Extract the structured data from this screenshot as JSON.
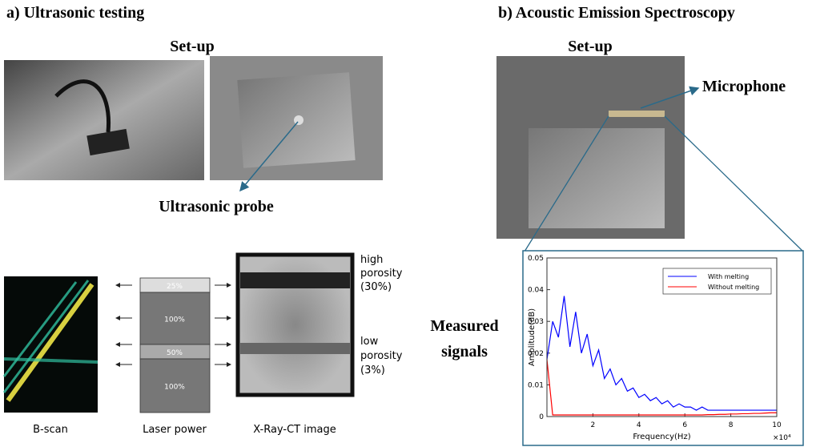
{
  "panel_a": {
    "title": "a) Ultrasonic testing",
    "setup": "Set-up",
    "probe_label": "Ultrasonic probe",
    "bscan_label": "B-scan",
    "laser_label": "Laser power",
    "xray_label": "X-Ray-CT image",
    "laser_steps": [
      "25%",
      "100%",
      "50%",
      "100%"
    ],
    "high_porosity": [
      "high",
      "porosity",
      "(30%)"
    ],
    "low_porosity": [
      "low",
      "porosity",
      "(3%)"
    ]
  },
  "panel_b": {
    "title": "b) Acoustic Emission Spectroscopy",
    "setup": "Set-up",
    "microphone": "Microphone",
    "measured": [
      "Measured",
      "signals"
    ]
  },
  "chart_data": {
    "type": "line",
    "xlabel": "Frequency(Hz)",
    "ylabel": "Amplitude(dB)",
    "x_multiplier": "×10⁴",
    "xlim": [
      0,
      100000
    ],
    "ylim": [
      0,
      0.05
    ],
    "xticks": [
      {
        "value": 20000,
        "label": "2"
      },
      {
        "value": 40000,
        "label": "4"
      },
      {
        "value": 60000,
        "label": "6"
      },
      {
        "value": 80000,
        "label": "8"
      },
      {
        "value": 100000,
        "label": "10"
      }
    ],
    "yticks": [
      0,
      0.01,
      0.02,
      0.03,
      0.04,
      0.05
    ],
    "x": [
      0,
      2500,
      5000,
      7500,
      10000,
      12500,
      15000,
      17500,
      20000,
      22500,
      25000,
      27500,
      30000,
      32500,
      35000,
      37500,
      40000,
      42500,
      45000,
      47500,
      50000,
      52500,
      55000,
      57500,
      60000,
      62500,
      65000,
      67500,
      70000,
      72500,
      75000,
      77500,
      80000,
      82500,
      85000,
      87500,
      90000,
      92500,
      95000,
      97500,
      100000
    ],
    "series": [
      {
        "name": "With melting",
        "color": "#0000ff",
        "values": [
          0.018,
          0.03,
          0.025,
          0.038,
          0.022,
          0.033,
          0.02,
          0.026,
          0.016,
          0.021,
          0.012,
          0.015,
          0.01,
          0.012,
          0.008,
          0.009,
          0.006,
          0.007,
          0.005,
          0.006,
          0.004,
          0.005,
          0.003,
          0.004,
          0.003,
          0.003,
          0.002,
          0.003,
          0.002,
          0.002,
          0.002,
          0.002,
          0.002,
          0.002,
          0.002,
          0.002,
          0.002,
          0.002,
          0.002,
          0.002,
          0.002
        ]
      },
      {
        "name": "Without melting",
        "color": "#ff0000",
        "values": [
          0.018,
          0.0005,
          0.0005,
          0.0005,
          0.0005,
          0.0005,
          0.0005,
          0.0005,
          0.0005,
          0.0005,
          0.0005,
          0.0005,
          0.0005,
          0.0005,
          0.0005,
          0.0005,
          0.0005,
          0.0005,
          0.0005,
          0.0005,
          0.0005,
          0.0005,
          0.0005,
          0.0005,
          0.0005,
          0.0005,
          0.0005,
          0.0005,
          0.0006,
          0.0006,
          0.0007,
          0.0007,
          0.0008,
          0.0008,
          0.0009,
          0.0009,
          0.001,
          0.001,
          0.0011,
          0.0012,
          0.0012
        ]
      }
    ]
  }
}
